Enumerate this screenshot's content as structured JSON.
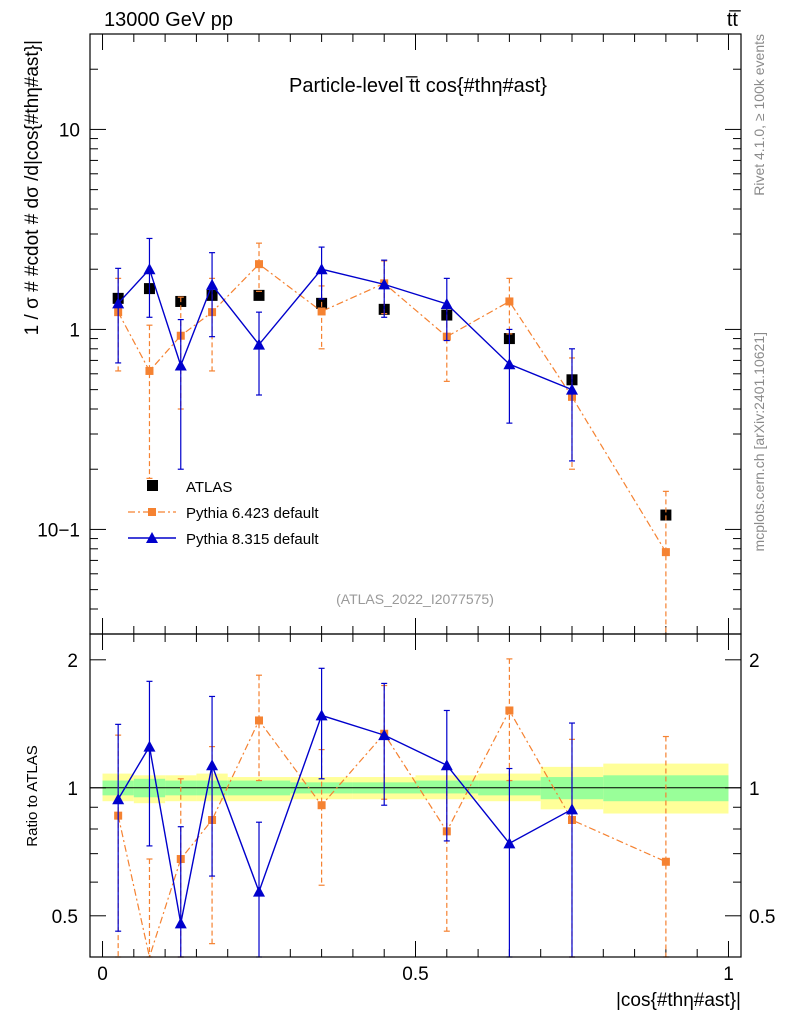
{
  "header": {
    "left": "13000 GeV pp",
    "right": "tt̅"
  },
  "side_text": {
    "rivet": "Rivet 4.1.0, ≥ 100k events",
    "mcplots": "mcplots.cern.ch [arXiv:2401.10621]"
  },
  "chart_data": {
    "type": "scatter",
    "title": "Particle-level t̅t cos{#thη#ast}",
    "analysis_label": "(ATLAS_2022_I2077575)",
    "xlabel": "|cos{#thη#ast}|",
    "ylabel": "1 / σ # #cdot # dσ /d|cos{#thη#ast}|",
    "ratio_ylabel": "Ratio to ATLAS",
    "xlim": [
      -0.02,
      1.02
    ],
    "main_ylim": [
      0.03,
      30
    ],
    "main_yscale": "log",
    "ratio_ylim": [
      0.4,
      2.3
    ],
    "ratio_yscale": "log",
    "x_ticks": [
      {
        "v": 0,
        "label": "0"
      },
      {
        "v": 0.5,
        "label": "0.5"
      },
      {
        "v": 1,
        "label": "1"
      }
    ],
    "main_y_ticks": [
      {
        "v": 0.1,
        "label": "10−1"
      },
      {
        "v": 1,
        "label": "1"
      },
      {
        "v": 10,
        "label": "10"
      }
    ],
    "ratio_y_ticks": [
      {
        "v": 0.5,
        "label": "0.5"
      },
      {
        "v": 1,
        "label": "1"
      },
      {
        "v": 2,
        "label": "2"
      }
    ],
    "bin_edges": [
      0,
      0.05,
      0.1,
      0.15,
      0.2,
      0.3,
      0.4,
      0.5,
      0.6,
      0.7,
      0.8,
      1.0
    ],
    "ratio_band_green": [
      {
        "x0": 0,
        "x1": 0.05,
        "lo": 0.96,
        "hi": 1.04
      },
      {
        "x0": 0.05,
        "x1": 0.1,
        "lo": 0.95,
        "hi": 1.05
      },
      {
        "x0": 0.1,
        "x1": 0.15,
        "lo": 0.96,
        "hi": 1.04
      },
      {
        "x0": 0.15,
        "x1": 0.2,
        "lo": 0.96,
        "hi": 1.04
      },
      {
        "x0": 0.2,
        "x1": 0.3,
        "lo": 0.96,
        "hi": 1.04
      },
      {
        "x0": 0.3,
        "x1": 0.4,
        "lo": 0.97,
        "hi": 1.03
      },
      {
        "x0": 0.4,
        "x1": 0.5,
        "lo": 0.97,
        "hi": 1.03
      },
      {
        "x0": 0.5,
        "x1": 0.6,
        "lo": 0.97,
        "hi": 1.04
      },
      {
        "x0": 0.6,
        "x1": 0.7,
        "lo": 0.96,
        "hi": 1.04
      },
      {
        "x0": 0.7,
        "x1": 0.8,
        "lo": 0.94,
        "hi": 1.06
      },
      {
        "x0": 0.8,
        "x1": 1.0,
        "lo": 0.93,
        "hi": 1.07
      }
    ],
    "ratio_band_yellow": [
      {
        "x0": 0,
        "x1": 0.05,
        "lo": 0.93,
        "hi": 1.08
      },
      {
        "x0": 0.05,
        "x1": 0.1,
        "lo": 0.92,
        "hi": 1.07
      },
      {
        "x0": 0.1,
        "x1": 0.15,
        "lo": 0.93,
        "hi": 1.07
      },
      {
        "x0": 0.15,
        "x1": 0.2,
        "lo": 0.93,
        "hi": 1.08
      },
      {
        "x0": 0.2,
        "x1": 0.3,
        "lo": 0.93,
        "hi": 1.06
      },
      {
        "x0": 0.3,
        "x1": 0.4,
        "lo": 0.94,
        "hi": 1.06
      },
      {
        "x0": 0.4,
        "x1": 0.5,
        "lo": 0.94,
        "hi": 1.06
      },
      {
        "x0": 0.5,
        "x1": 0.6,
        "lo": 0.94,
        "hi": 1.07
      },
      {
        "x0": 0.6,
        "x1": 0.7,
        "lo": 0.93,
        "hi": 1.08
      },
      {
        "x0": 0.7,
        "x1": 0.8,
        "lo": 0.89,
        "hi": 1.12
      },
      {
        "x0": 0.8,
        "x1": 1.0,
        "lo": 0.87,
        "hi": 1.14
      }
    ],
    "series": [
      {
        "name": "ATLAS",
        "marker": "square",
        "color": "#000000",
        "line": "none",
        "points": [
          {
            "x": 0.025,
            "y": 1.43,
            "ylo": 1.4,
            "yhi": 1.46
          },
          {
            "x": 0.075,
            "y": 1.6,
            "ylo": 1.57,
            "yhi": 1.63
          },
          {
            "x": 0.125,
            "y": 1.38,
            "ylo": 1.35,
            "yhi": 1.41
          },
          {
            "x": 0.175,
            "y": 1.48,
            "ylo": 1.45,
            "yhi": 1.51
          },
          {
            "x": 0.25,
            "y": 1.48,
            "ylo": 1.45,
            "yhi": 1.51
          },
          {
            "x": 0.35,
            "y": 1.35,
            "ylo": 1.32,
            "yhi": 1.38
          },
          {
            "x": 0.45,
            "y": 1.26,
            "ylo": 1.23,
            "yhi": 1.29
          },
          {
            "x": 0.55,
            "y": 1.18,
            "ylo": 1.15,
            "yhi": 1.21
          },
          {
            "x": 0.65,
            "y": 0.9,
            "ylo": 0.88,
            "yhi": 0.92
          },
          {
            "x": 0.75,
            "y": 0.56,
            "ylo": 0.55,
            "yhi": 0.57
          },
          {
            "x": 0.9,
            "y": 0.118,
            "ylo": 0.115,
            "yhi": 0.121
          }
        ],
        "ratio": []
      },
      {
        "name": "Pythia 6.423 default",
        "marker": "square-small",
        "color": "#f58231",
        "line": "dashdot",
        "points": [
          {
            "x": 0.025,
            "y": 1.22,
            "ylo": 0.62,
            "yhi": 1.8
          },
          {
            "x": 0.075,
            "y": 0.62,
            "ylo": 0.18,
            "yhi": 1.05
          },
          {
            "x": 0.125,
            "y": 0.93,
            "ylo": 0.4,
            "yhi": 1.45
          },
          {
            "x": 0.175,
            "y": 1.22,
            "ylo": 0.62,
            "yhi": 1.8
          },
          {
            "x": 0.25,
            "y": 2.12,
            "ylo": 1.55,
            "yhi": 2.7
          },
          {
            "x": 0.35,
            "y": 1.23,
            "ylo": 0.8,
            "yhi": 1.65
          },
          {
            "x": 0.45,
            "y": 1.7,
            "ylo": 1.2,
            "yhi": 2.2
          },
          {
            "x": 0.55,
            "y": 0.92,
            "ylo": 0.55,
            "yhi": 1.3
          },
          {
            "x": 0.65,
            "y": 1.38,
            "ylo": 0.95,
            "yhi": 1.8
          },
          {
            "x": 0.75,
            "y": 0.46,
            "ylo": 0.2,
            "yhi": 0.72
          },
          {
            "x": 0.9,
            "y": 0.077,
            "ylo": 0.012,
            "yhi": 0.155
          }
        ],
        "ratio": [
          {
            "x": 0.025,
            "y": 0.86,
            "ylo": 0.38,
            "yhi": 1.33
          },
          {
            "x": 0.075,
            "y": 0.39,
            "ylo": 0.1,
            "yhi": 0.68
          },
          {
            "x": 0.125,
            "y": 0.68,
            "ylo": 0.3,
            "yhi": 1.05
          },
          {
            "x": 0.175,
            "y": 0.84,
            "ylo": 0.43,
            "yhi": 1.25
          },
          {
            "x": 0.25,
            "y": 1.44,
            "ylo": 1.04,
            "yhi": 1.84
          },
          {
            "x": 0.35,
            "y": 0.91,
            "ylo": 0.59,
            "yhi": 1.23
          },
          {
            "x": 0.45,
            "y": 1.34,
            "ylo": 0.94,
            "yhi": 1.74
          },
          {
            "x": 0.55,
            "y": 0.79,
            "ylo": 0.46,
            "yhi": 1.12
          },
          {
            "x": 0.65,
            "y": 1.52,
            "ylo": 1.04,
            "yhi": 2.01
          },
          {
            "x": 0.75,
            "y": 0.84,
            "ylo": 0.36,
            "yhi": 1.3
          },
          {
            "x": 0.9,
            "y": 0.67,
            "ylo": 0.1,
            "yhi": 1.32
          }
        ]
      },
      {
        "name": "Pythia 8.315 default",
        "marker": "triangle",
        "color": "#0000cc",
        "line": "solid",
        "points": [
          {
            "x": 0.025,
            "y": 1.35,
            "ylo": 0.68,
            "yhi": 2.02
          },
          {
            "x": 0.075,
            "y": 2.0,
            "ylo": 1.15,
            "yhi": 2.85
          },
          {
            "x": 0.125,
            "y": 0.66,
            "ylo": 0.2,
            "yhi": 1.12
          },
          {
            "x": 0.175,
            "y": 1.67,
            "ylo": 0.92,
            "yhi": 2.42
          },
          {
            "x": 0.25,
            "y": 0.84,
            "ylo": 0.47,
            "yhi": 1.22
          },
          {
            "x": 0.35,
            "y": 2.0,
            "ylo": 1.42,
            "yhi": 2.58
          },
          {
            "x": 0.45,
            "y": 1.68,
            "ylo": 1.15,
            "yhi": 2.22
          },
          {
            "x": 0.55,
            "y": 1.34,
            "ylo": 0.88,
            "yhi": 1.8
          },
          {
            "x": 0.65,
            "y": 0.67,
            "ylo": 0.34,
            "yhi": 1.0
          },
          {
            "x": 0.75,
            "y": 0.5,
            "ylo": 0.22,
            "yhi": 0.8
          }
        ],
        "ratio": [
          {
            "x": 0.025,
            "y": 0.94,
            "ylo": 0.46,
            "yhi": 1.41
          },
          {
            "x": 0.075,
            "y": 1.25,
            "ylo": 0.73,
            "yhi": 1.78
          },
          {
            "x": 0.125,
            "y": 0.48,
            "ylo": 0.15,
            "yhi": 0.81
          },
          {
            "x": 0.175,
            "y": 1.13,
            "ylo": 0.62,
            "yhi": 1.64
          },
          {
            "x": 0.25,
            "y": 0.57,
            "ylo": 0.32,
            "yhi": 0.83
          },
          {
            "x": 0.35,
            "y": 1.48,
            "ylo": 1.05,
            "yhi": 1.91
          },
          {
            "x": 0.45,
            "y": 1.33,
            "ylo": 0.91,
            "yhi": 1.76
          },
          {
            "x": 0.55,
            "y": 1.13,
            "ylo": 0.75,
            "yhi": 1.52
          },
          {
            "x": 0.65,
            "y": 0.74,
            "ylo": 0.37,
            "yhi": 1.11
          },
          {
            "x": 0.75,
            "y": 0.89,
            "ylo": 0.39,
            "yhi": 1.42
          }
        ]
      }
    ]
  }
}
